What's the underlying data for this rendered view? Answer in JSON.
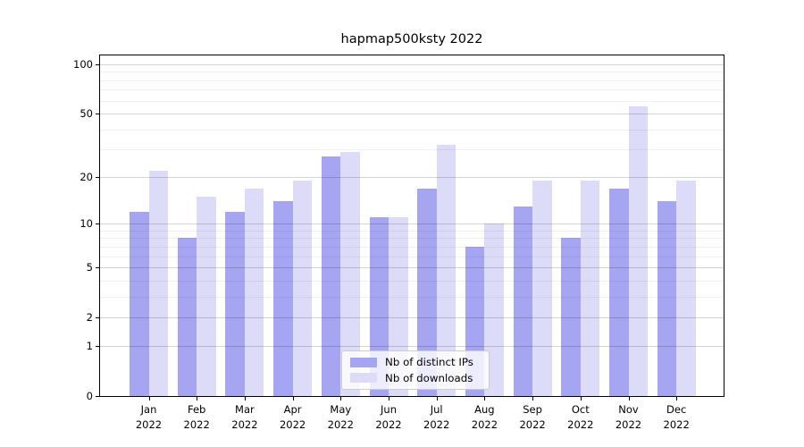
{
  "title": "hapmap500ksty 2022",
  "chart_data": {
    "type": "bar",
    "title": "hapmap500ksty 2022",
    "categories": [
      "Jan 2022",
      "Feb 2022",
      "Mar 2022",
      "Apr 2022",
      "May 2022",
      "Jun 2022",
      "Jul 2022",
      "Aug 2022",
      "Sep 2022",
      "Oct 2022",
      "Nov 2022",
      "Dec 2022"
    ],
    "series": [
      {
        "name": "Nb of distinct IPs",
        "color": "#a5a5f2",
        "values": [
          12,
          8,
          12,
          14,
          27,
          11,
          17,
          7,
          13,
          8,
          17,
          14
        ]
      },
      {
        "name": "Nb of downloads",
        "color": "#dcdcf8",
        "values": [
          22,
          15,
          17,
          19,
          29,
          11,
          32,
          10,
          19,
          19,
          55,
          19
        ]
      }
    ],
    "xlabel": "",
    "ylabel": "",
    "yscale": "log1p",
    "ylim": [
      0,
      113.4
    ],
    "y_major_ticks": [
      0,
      1,
      2,
      5,
      10,
      20,
      50,
      100
    ],
    "y_minor_ticks": [
      3,
      4,
      6,
      7,
      8,
      9,
      30,
      40,
      60,
      70,
      80,
      90
    ],
    "grid": "major+minor horizontal, drawn over bars",
    "legend_position": "lower center inside plot"
  },
  "colors": {
    "bar_dark": "#a5a5f2",
    "bar_light": "#dcdcf8",
    "axis": "#000000",
    "legend_border": "#cccccc"
  }
}
